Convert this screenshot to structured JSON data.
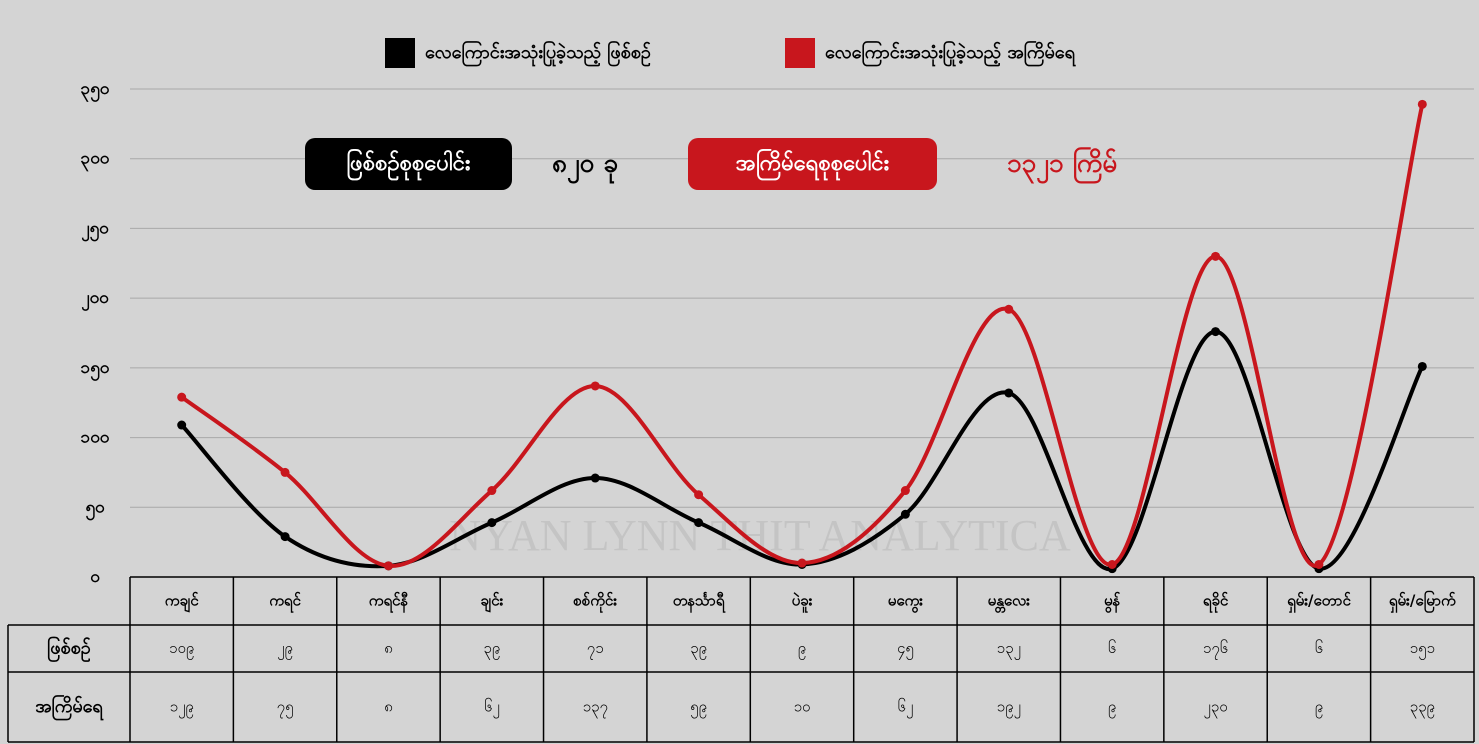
{
  "chart_data": {
    "type": "line",
    "categories": [
      "ကချင်",
      "ကရင်",
      "ကရင်နီ",
      "ချင်း",
      "စစ်ကိုင်း",
      "တနင်္သာရီ",
      "ပဲခူး",
      "မကွေး",
      "မန္တလေး",
      "မွန်",
      "ရခိုင်",
      "ရှမ်း/တောင်",
      "ရှမ်း/မြောက်"
    ],
    "series": [
      {
        "name": "လေကြောင်းအသုံးပြုခဲ့သည့် ဖြစ်စဉ်",
        "color": "#000000",
        "values": [
          109,
          29,
          8,
          39,
          71,
          39,
          9,
          45,
          132,
          6,
          176,
          6,
          151
        ],
        "value_labels": [
          "၁၀၉",
          "၂၉",
          "၈",
          "၃၉",
          "၇၁",
          "၃၉",
          "၉",
          "၄၅",
          "၁၃၂",
          "၆",
          "၁၇၆",
          "၆",
          "၁၅၁"
        ]
      },
      {
        "name": "လေကြောင်းအသုံးပြုခဲ့သည့် အကြိမ်ရေ",
        "color": "#c8161d",
        "values": [
          129,
          75,
          8,
          62,
          137,
          59,
          10,
          62,
          192,
          9,
          230,
          9,
          339
        ],
        "value_labels": [
          "၁၂၉",
          "၇၅",
          "၈",
          "၆၂",
          "၁၃၇",
          "၅၉",
          "၁၀",
          "၆၂",
          "၁၉၂",
          "၉",
          "၂၃၀",
          "၉",
          "၃၃၉"
        ]
      }
    ],
    "table_row_labels": [
      "ဖြစ်စဉ်",
      "အကြိမ်ရေ"
    ],
    "ylim": [
      0,
      350
    ],
    "yticks": [
      {
        "value": 0,
        "label": "၀"
      },
      {
        "value": 50,
        "label": "၅၀"
      },
      {
        "value": 100,
        "label": "၁၀၀"
      },
      {
        "value": 150,
        "label": "၁၅၀"
      },
      {
        "value": 200,
        "label": "၂၀၀"
      },
      {
        "value": 250,
        "label": "၂၅၀"
      },
      {
        "value": 300,
        "label": "၃၀၀"
      },
      {
        "value": 350,
        "label": "၃၅၀"
      }
    ],
    "grid": true,
    "totals": [
      {
        "label": "ဖြစ်စဉ်စုစုပေါင်း",
        "value": 820,
        "value_label": "၈၂၀ ခု"
      },
      {
        "label": "အကြိမ်ရေစုစုပေါင်း",
        "value": 1321,
        "value_label": "၁၃၂၁ ကြိမ်"
      }
    ],
    "watermark": "NYAN LYNN THIT ANALYTICA"
  }
}
